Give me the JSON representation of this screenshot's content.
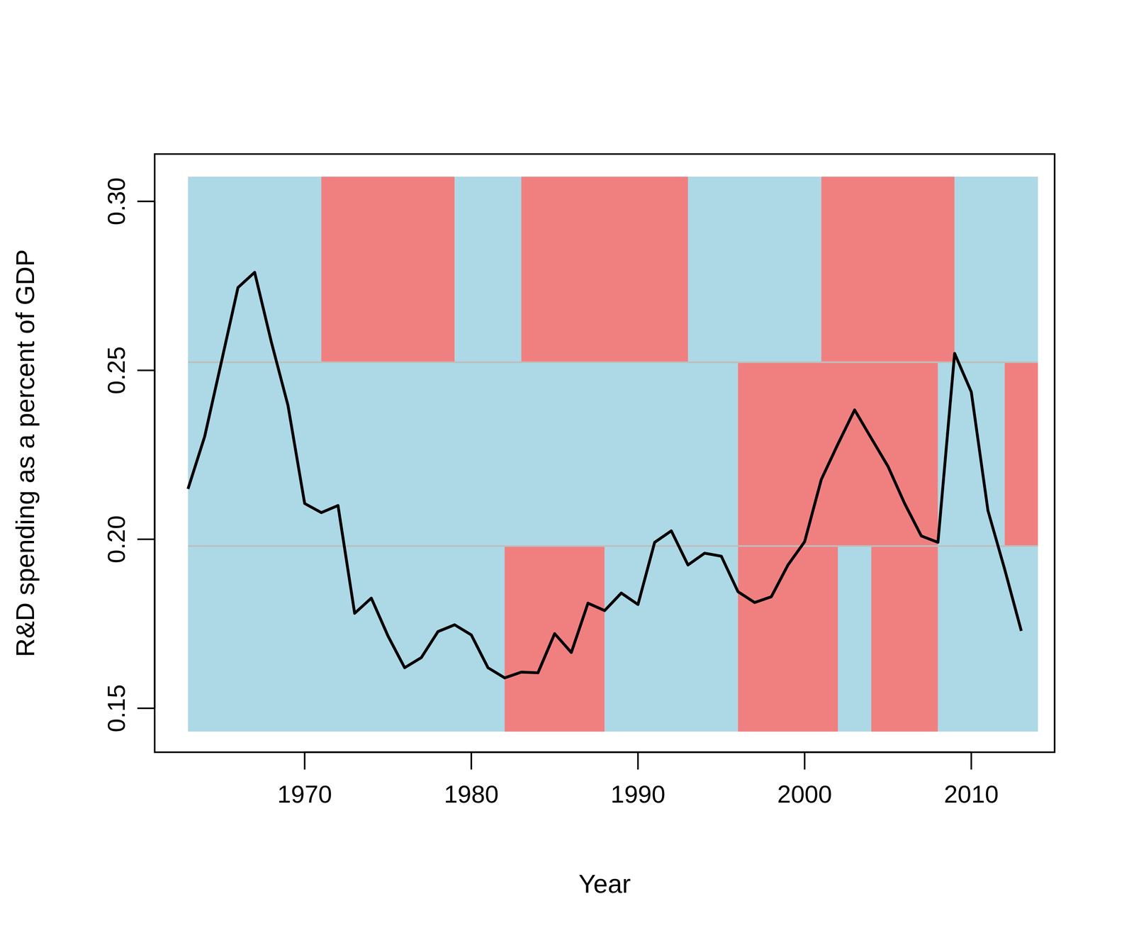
{
  "chart_data": {
    "type": "line",
    "x_label": "Year",
    "y_label": "R&D spending as a percent of GDP",
    "xlim": [
      1961,
      2015
    ],
    "ylim": [
      0.137,
      0.314
    ],
    "xticks": [
      1970,
      1980,
      1990,
      2000,
      2010
    ],
    "yticks": [
      0.15,
      {
        "value": 0.2,
        "label": "0.20"
      },
      0.25,
      {
        "value": 0.3,
        "label": "0.30"
      }
    ],
    "grid": false,
    "x": [
      1963,
      1964,
      1965,
      1966,
      1967,
      1968,
      1969,
      1970,
      1971,
      1972,
      1973,
      1974,
      1975,
      1976,
      1977,
      1978,
      1979,
      1980,
      1981,
      1982,
      1983,
      1984,
      1985,
      1986,
      1987,
      1988,
      1989,
      1990,
      1991,
      1992,
      1993,
      1994,
      1995,
      1996,
      1997,
      1998,
      1999,
      2000,
      2001,
      2002,
      2003,
      2004,
      2005,
      2006,
      2007,
      2008,
      2009,
      2010,
      2011,
      2012,
      2013
    ],
    "series": [
      {
        "color": "#000000",
        "values": [
          0.2149,
          0.2304,
          0.2524,
          0.2745,
          0.279,
          0.2584,
          0.2396,
          0.2106,
          0.2079,
          0.21,
          0.1781,
          0.1826,
          0.1714,
          0.162,
          0.165,
          0.1727,
          0.1747,
          0.1717,
          0.162,
          0.159,
          0.1607,
          0.1605,
          0.1721,
          0.1665,
          0.1811,
          0.1789,
          0.1841,
          0.1807,
          0.1991,
          0.2025,
          0.1924,
          0.1959,
          0.195,
          0.1845,
          0.1813,
          0.183,
          0.1924,
          0.1993,
          0.2177,
          0.2282,
          0.2383,
          0.2299,
          0.2216,
          0.2106,
          0.201,
          0.1991,
          0.255,
          0.2436,
          0.2085,
          0.1912,
          0.1729
        ]
      }
    ],
    "bands": [
      {
        "ymin": 0.2524,
        "ymax": 0.3073,
        "segments": [
          {
            "start": 1963,
            "end": 1971,
            "color": "#add8e6"
          },
          {
            "start": 1971,
            "end": 1979,
            "color": "#f08080"
          },
          {
            "start": 1979,
            "end": 1983,
            "color": "#add8e6"
          },
          {
            "start": 1983,
            "end": 1993,
            "color": "#f08080"
          },
          {
            "start": 1993,
            "end": 2001,
            "color": "#add8e6"
          },
          {
            "start": 2001,
            "end": 2009,
            "color": "#f08080"
          },
          {
            "start": 2009,
            "end": 2014,
            "color": "#add8e6"
          }
        ]
      },
      {
        "ymin": 0.198,
        "ymax": 0.2524,
        "segments": [
          {
            "start": 1963,
            "end": 1996,
            "color": "#add8e6"
          },
          {
            "start": 1996,
            "end": 2008,
            "color": "#f08080"
          },
          {
            "start": 2008,
            "end": 2012,
            "color": "#add8e6"
          },
          {
            "start": 2012,
            "end": 2014,
            "color": "#f08080"
          }
        ]
      },
      {
        "ymin": 0.1431,
        "ymax": 0.198,
        "segments": [
          {
            "start": 1963,
            "end": 1982,
            "color": "#add8e6"
          },
          {
            "start": 1982,
            "end": 1988,
            "color": "#f08080"
          },
          {
            "start": 1988,
            "end": 1996,
            "color": "#add8e6"
          },
          {
            "start": 1996,
            "end": 2002,
            "color": "#f08080"
          },
          {
            "start": 2002,
            "end": 2004,
            "color": "#add8e6"
          },
          {
            "start": 2004,
            "end": 2008,
            "color": "#f08080"
          },
          {
            "start": 2008,
            "end": 2014,
            "color": "#add8e6"
          }
        ]
      }
    ]
  }
}
